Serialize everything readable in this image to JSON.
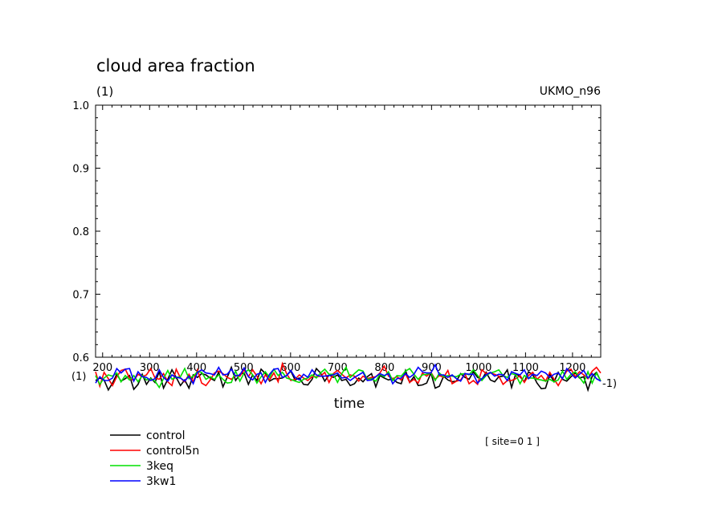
{
  "chart_data": {
    "type": "line",
    "title": "cloud area fraction",
    "ylabel": "(1)",
    "model_label": "UKMO_n96",
    "xlabel": "time",
    "x_units_label": "(1)",
    "x_units_label_right": "-1)",
    "site_label": "[ site=0 1 ]",
    "ylim": [
      0.6,
      1.0
    ],
    "xlim": [
      185,
      1260
    ],
    "y_ticks": [
      "1.0",
      "0.9",
      "0.8",
      "0.7",
      "0.6"
    ],
    "x_ticks": [
      "200",
      "300",
      "400",
      "500",
      "600",
      "700",
      "800",
      "900",
      "1000",
      "1100",
      "1200"
    ],
    "x_tick_values": [
      200,
      300,
      400,
      500,
      600,
      700,
      800,
      900,
      1000,
      1100,
      1200
    ],
    "y_tick_values": [
      1.0,
      0.9,
      0.8,
      0.7,
      0.6
    ],
    "grid": false,
    "legend_position": "bottom-left",
    "series": [
      {
        "name": "control",
        "color": "#000000",
        "values": [
          0.563,
          0.567,
          0.564,
          0.548,
          0.559,
          0.573,
          0.562,
          0.566,
          0.571,
          0.549,
          0.557,
          0.573,
          0.557,
          0.567,
          0.56,
          0.577,
          0.551,
          0.565,
          0.58,
          0.568,
          0.555,
          0.564,
          0.551,
          0.572,
          0.568,
          0.574,
          0.572,
          0.567,
          0.563,
          0.576,
          0.553,
          0.568,
          0.584,
          0.563,
          0.573,
          0.575,
          0.557,
          0.572,
          0.563,
          0.581,
          0.574,
          0.562,
          0.566,
          0.566,
          0.567,
          0.571,
          0.578,
          0.564,
          0.567,
          0.557,
          0.556,
          0.565,
          0.582,
          0.575,
          0.562,
          0.572,
          0.568,
          0.572,
          0.563,
          0.565,
          0.555,
          0.558,
          0.567,
          0.561,
          0.569,
          0.574,
          0.553,
          0.571,
          0.567,
          0.564,
          0.566,
          0.56,
          0.558,
          0.579,
          0.56,
          0.569,
          0.555,
          0.556,
          0.559,
          0.575,
          0.551,
          0.554,
          0.57,
          0.564,
          0.561,
          0.562,
          0.574,
          0.568,
          0.565,
          0.577,
          0.568,
          0.565,
          0.576,
          0.564,
          0.561,
          0.569,
          0.57,
          0.58,
          0.552,
          0.574,
          0.569,
          0.561,
          0.577,
          0.572,
          0.559,
          0.55,
          0.551,
          0.573,
          0.561,
          0.576,
          0.565,
          0.562,
          0.569,
          0.575,
          0.567,
          0.569,
          0.548,
          0.57,
          0.576,
          0.562
        ]
      },
      {
        "name": "control5n",
        "color": "#ff0000",
        "values": [
          0.577,
          0.554,
          0.576,
          0.566,
          0.555,
          0.569,
          0.579,
          0.581,
          0.567,
          0.563,
          0.573,
          0.569,
          0.572,
          0.582,
          0.567,
          0.565,
          0.574,
          0.561,
          0.555,
          0.581,
          0.567,
          0.561,
          0.573,
          0.561,
          0.58,
          0.559,
          0.555,
          0.564,
          0.575,
          0.578,
          0.574,
          0.568,
          0.565,
          0.571,
          0.57,
          0.58,
          0.569,
          0.58,
          0.57,
          0.558,
          0.572,
          0.564,
          0.575,
          0.561,
          0.59,
          0.574,
          0.563,
          0.565,
          0.572,
          0.567,
          0.563,
          0.569,
          0.569,
          0.57,
          0.576,
          0.56,
          0.574,
          0.579,
          0.573,
          0.567,
          0.572,
          0.57,
          0.562,
          0.57,
          0.566,
          0.568,
          0.569,
          0.575,
          0.586,
          0.57,
          0.566,
          0.569,
          0.564,
          0.574,
          0.56,
          0.565,
          0.559,
          0.575,
          0.57,
          0.576,
          0.565,
          0.571,
          0.568,
          0.579,
          0.558,
          0.562,
          0.564,
          0.574,
          0.558,
          0.563,
          0.557,
          0.58,
          0.574,
          0.575,
          0.573,
          0.57,
          0.557,
          0.563,
          0.563,
          0.566,
          0.571,
          0.56,
          0.571,
          0.576,
          0.565,
          0.571,
          0.562,
          0.576,
          0.565,
          0.555,
          0.567,
          0.578,
          0.581,
          0.569,
          0.577,
          0.572,
          0.566,
          0.578,
          0.584,
          0.575
        ]
      },
      {
        "name": "3keq",
        "color": "#00e000",
        "values": [
          0.571,
          0.557,
          0.567,
          0.572,
          0.57,
          0.575,
          0.561,
          0.571,
          0.564,
          0.571,
          0.561,
          0.571,
          0.564,
          0.566,
          0.562,
          0.552,
          0.566,
          0.579,
          0.565,
          0.568,
          0.569,
          0.582,
          0.566,
          0.57,
          0.577,
          0.576,
          0.565,
          0.569,
          0.565,
          0.572,
          0.565,
          0.559,
          0.56,
          0.578,
          0.562,
          0.575,
          0.58,
          0.572,
          0.559,
          0.569,
          0.577,
          0.568,
          0.581,
          0.571,
          0.576,
          0.567,
          0.565,
          0.562,
          0.56,
          0.565,
          0.567,
          0.572,
          0.567,
          0.575,
          0.581,
          0.573,
          0.573,
          0.56,
          0.574,
          0.584,
          0.568,
          0.574,
          0.58,
          0.578,
          0.565,
          0.566,
          0.562,
          0.573,
          0.569,
          0.577,
          0.563,
          0.571,
          0.57,
          0.578,
          0.582,
          0.573,
          0.565,
          0.572,
          0.573,
          0.575,
          0.563,
          0.575,
          0.569,
          0.571,
          0.57,
          0.569,
          0.573,
          0.574,
          0.572,
          0.58,
          0.571,
          0.563,
          0.571,
          0.575,
          0.577,
          0.58,
          0.571,
          0.568,
          0.574,
          0.572,
          0.558,
          0.571,
          0.567,
          0.567,
          0.565,
          0.564,
          0.562,
          0.565,
          0.561,
          0.564,
          0.578,
          0.565,
          0.573,
          0.577,
          0.568,
          0.559,
          0.577,
          0.559,
          0.575,
          0.562
        ]
      },
      {
        "name": "3kw1",
        "color": "#0000ff",
        "values": [
          0.559,
          0.569,
          0.563,
          0.563,
          0.567,
          0.582,
          0.575,
          0.581,
          0.582,
          0.562,
          0.577,
          0.569,
          0.568,
          0.563,
          0.566,
          0.58,
          0.568,
          0.562,
          0.572,
          0.568,
          0.567,
          0.562,
          0.57,
          0.558,
          0.576,
          0.58,
          0.575,
          0.574,
          0.572,
          0.584,
          0.572,
          0.573,
          0.581,
          0.57,
          0.572,
          0.583,
          0.569,
          0.564,
          0.573,
          0.575,
          0.56,
          0.573,
          0.581,
          0.582,
          0.568,
          0.571,
          0.579,
          0.568,
          0.564,
          0.573,
          0.568,
          0.58,
          0.572,
          0.57,
          0.57,
          0.571,
          0.572,
          0.575,
          0.567,
          0.568,
          0.563,
          0.568,
          0.572,
          0.576,
          0.563,
          0.564,
          0.569,
          0.574,
          0.571,
          0.574,
          0.558,
          0.566,
          0.567,
          0.574,
          0.568,
          0.573,
          0.584,
          0.577,
          0.575,
          0.575,
          0.588,
          0.572,
          0.572,
          0.568,
          0.572,
          0.566,
          0.562,
          0.574,
          0.573,
          0.573,
          0.559,
          0.566,
          0.572,
          0.576,
          0.57,
          0.573,
          0.572,
          0.563,
          0.577,
          0.574,
          0.572,
          0.58,
          0.566,
          0.573,
          0.571,
          0.578,
          0.575,
          0.568,
          0.573,
          0.575,
          0.566,
          0.582,
          0.574,
          0.567,
          0.573,
          0.579,
          0.567,
          0.574,
          0.566,
          0.562
        ]
      }
    ]
  }
}
